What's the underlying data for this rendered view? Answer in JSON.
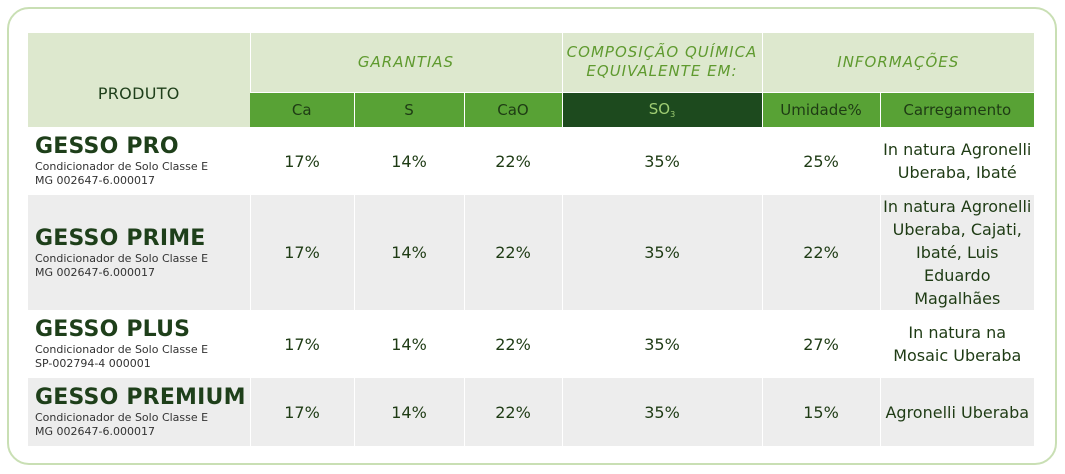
{
  "header": {
    "produto": "PRODUTO",
    "garantias": "GARANTIAS",
    "composicao_line1": "COMPOSIÇÃO QUÍMICA",
    "composicao_line2": "EQUIVALENTE EM:",
    "informacoes": "INFORMAÇÕES"
  },
  "columns": {
    "ca": "Ca",
    "s": "S",
    "cao": "CaO",
    "so": "SO",
    "so_sub": "3",
    "umidade": "Umidade%",
    "carregamento": "Carregamento"
  },
  "products": [
    {
      "name": "GESSO PRO",
      "classe": "Condicionador de Solo Classe E",
      "registro": "MG 002647-6.000017",
      "ca": "17%",
      "s": "14%",
      "cao": "22%",
      "so3": "35%",
      "umidade": "25%",
      "carregamento": [
        "In natura Agronelli",
        "Uberaba, Ibaté"
      ]
    },
    {
      "name": "GESSO PRIME",
      "classe": "Condicionador de Solo Classe E",
      "registro": "MG 002647-6.000017",
      "ca": "17%",
      "s": "14%",
      "cao": "22%",
      "so3": "35%",
      "umidade": "22%",
      "carregamento": [
        "In natura Agronelli",
        "Uberaba, Cajati,",
        "Ibaté, Luis Eduardo",
        "Magalhães"
      ]
    },
    {
      "name": "GESSO PLUS",
      "classe": "Condicionador de Solo Classe E",
      "registro": "SP-002794-4 000001",
      "ca": "17%",
      "s": "14%",
      "cao": "22%",
      "so3": "35%",
      "umidade": "27%",
      "carregamento": [
        "In natura na",
        "Mosaic Uberaba"
      ]
    },
    {
      "name": "GESSO PREMIUM",
      "classe": "Condicionador de Solo Classe E",
      "registro": "MG 002647-6.000017",
      "ca": "17%",
      "s": "14%",
      "cao": "22%",
      "so3": "35%",
      "umidade": "15%",
      "carregamento": [
        "Agronelli Uberaba"
      ]
    }
  ]
}
